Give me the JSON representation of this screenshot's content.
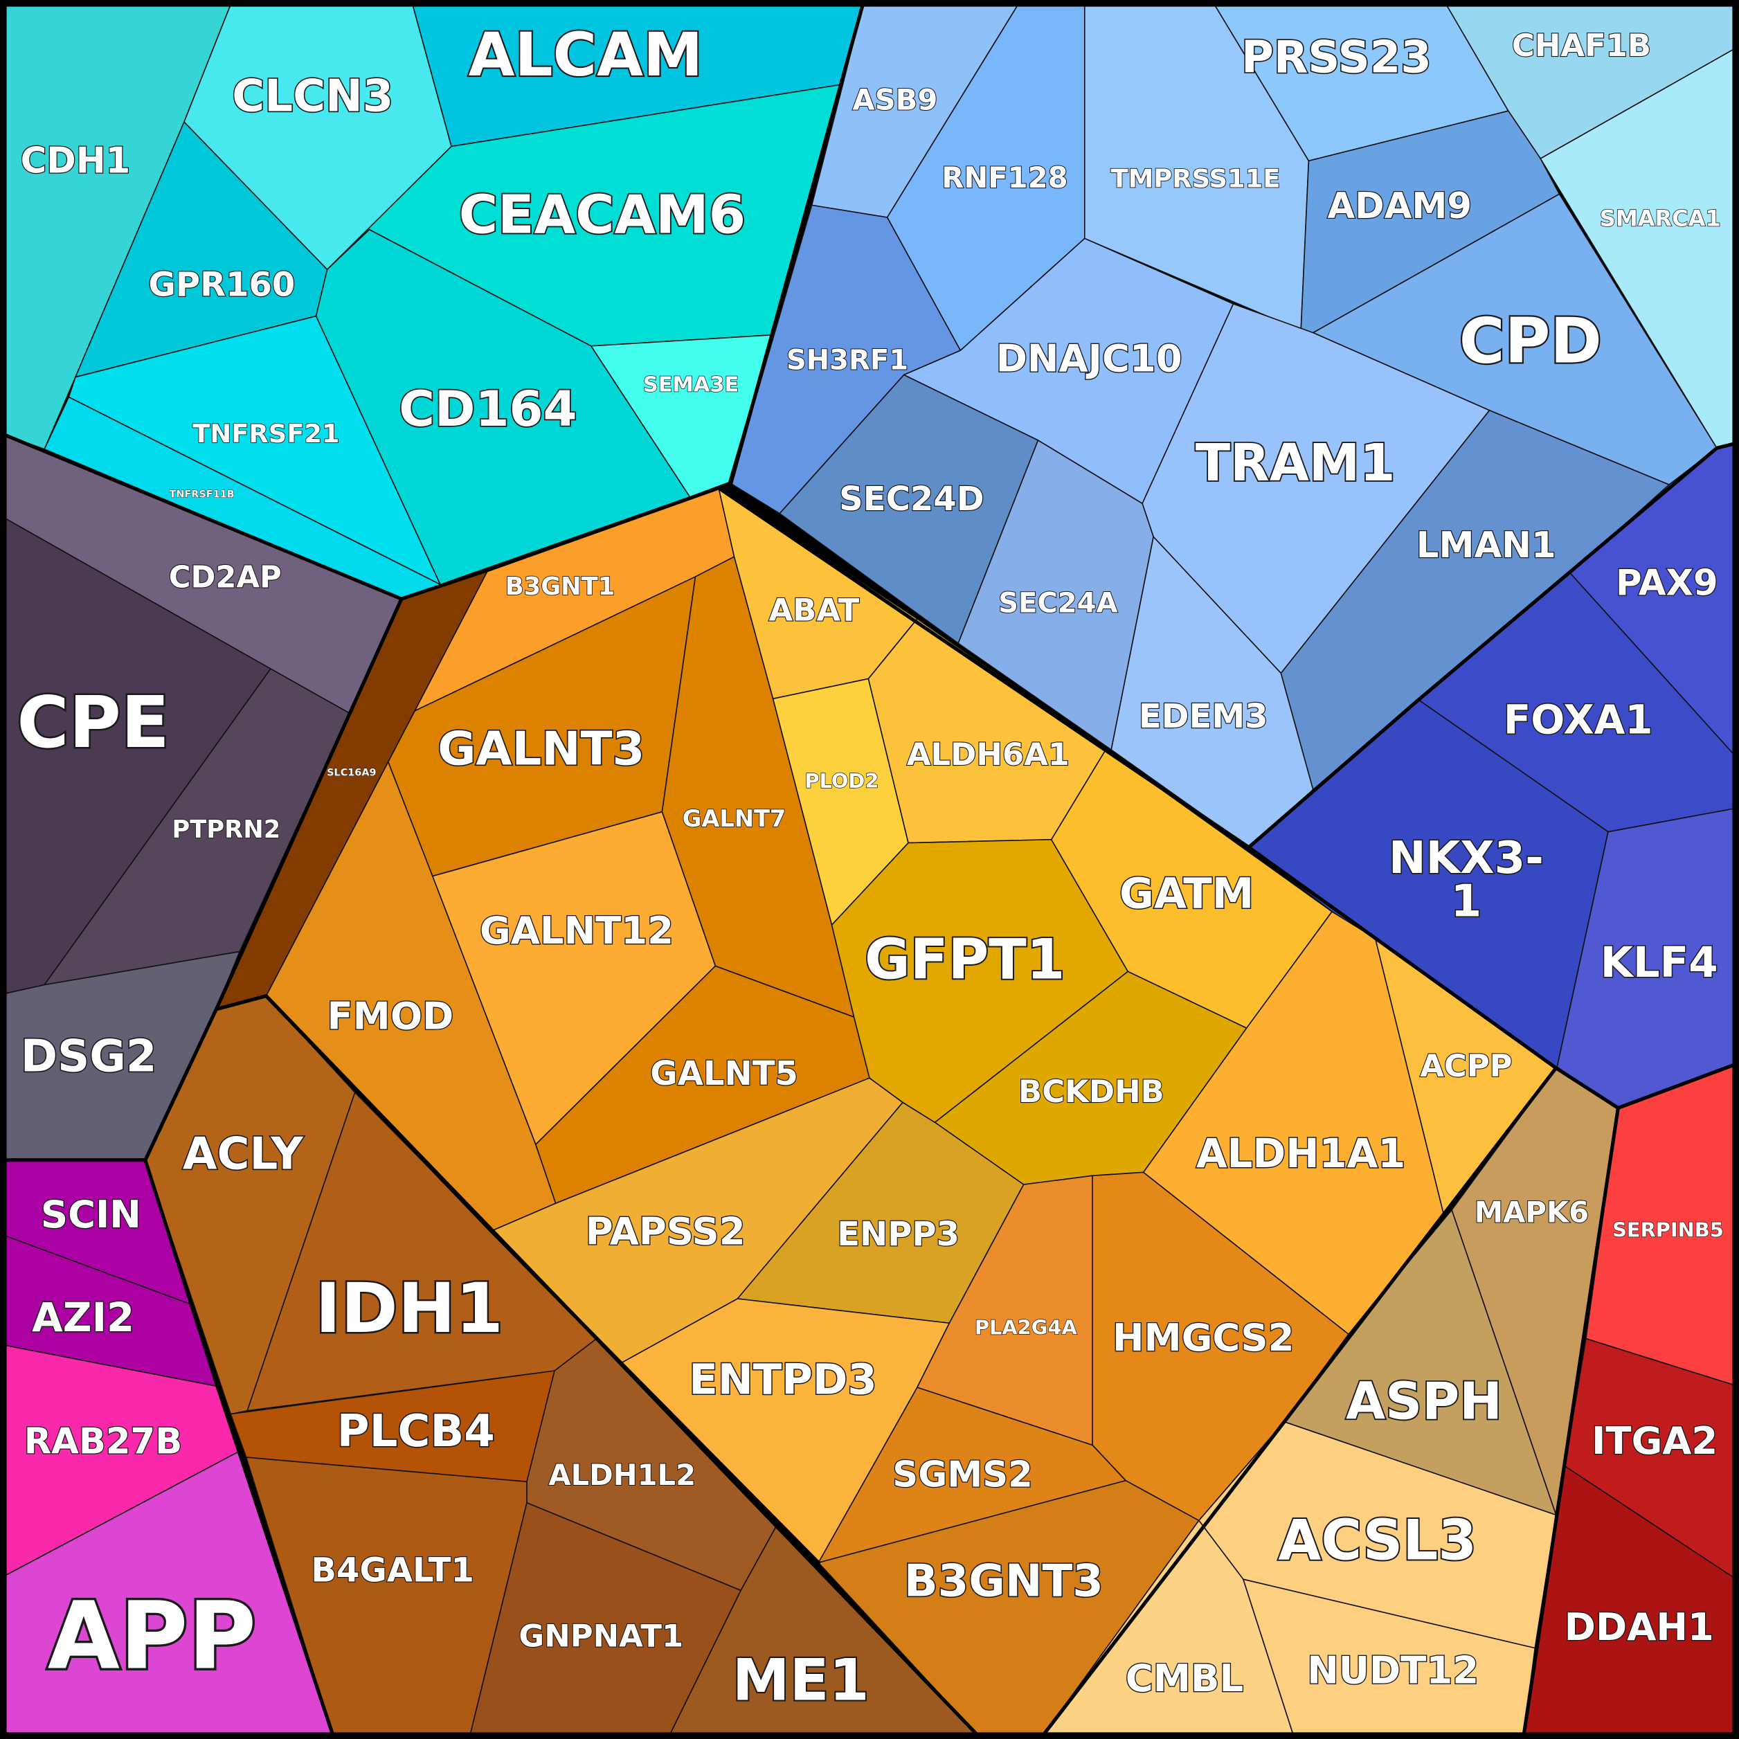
{
  "treemap": {
    "groups": [
      {
        "name": "teal",
        "color": "#00CED1",
        "cells": [
          {
            "label": "CDH1",
            "color": "#36D4D4"
          },
          {
            "label": "CLCN3",
            "color": "#48E9EE"
          },
          {
            "label": "ALCAM",
            "color": "#00C4E0"
          },
          {
            "label": "CEACAM6",
            "color": "#00DED6"
          },
          {
            "label": "GPR160",
            "color": "#00C8D8"
          },
          {
            "label": "TNFRSF21",
            "color": "#00DFEE"
          },
          {
            "label": "TNFRSF11B",
            "color": "#00DAEC"
          },
          {
            "label": "CD164",
            "color": "#00D7D6"
          },
          {
            "label": "SEMA3E",
            "color": "#44FFEE"
          }
        ]
      },
      {
        "name": "light-blue",
        "color": "#87BBF5",
        "cells": [
          {
            "label": "ASB9",
            "color": "#8EC0FA"
          },
          {
            "label": "RNF128",
            "color": "#7AB6FA"
          },
          {
            "label": "TMPRSS11E",
            "color": "#96C8FC"
          },
          {
            "label": "PRSS23",
            "color": "#8DC8FC"
          },
          {
            "label": "CHAF1B",
            "color": "#97D8F0"
          },
          {
            "label": "SMARCA1",
            "color": "#A8EAFA"
          },
          {
            "label": "ADAM9",
            "color": "#68A2E2"
          },
          {
            "label": "CPD",
            "color": "#78B0F0"
          },
          {
            "label": "SH3RF1",
            "color": "#6496E4"
          },
          {
            "label": "DNAJC10",
            "color": "#90BEFC"
          },
          {
            "label": "TRAM1",
            "color": "#98C2FC"
          },
          {
            "label": "SEC24D",
            "color": "#5F8DC8"
          },
          {
            "label": "SEC24A",
            "color": "#86AEE8"
          },
          {
            "label": "EDEM3",
            "color": "#9AC4FA"
          },
          {
            "label": "LMAN1",
            "color": "#6492D0"
          }
        ]
      },
      {
        "name": "dark-purple",
        "color": "#4E3B55",
        "cells": [
          {
            "label": "CD2AP",
            "color": "#70627E"
          },
          {
            "label": "CPE",
            "color": "#4B3A52"
          },
          {
            "label": "PTPRN2",
            "color": "#56465C"
          },
          {
            "label": "DSG2",
            "color": "#646074"
          }
        ]
      },
      {
        "name": "orange",
        "color": "#E8931E",
        "cells": [
          {
            "label": "SLC16A9",
            "color": "#843B00"
          },
          {
            "label": "B3GNT1",
            "color": "#FC9F2A"
          },
          {
            "label": "GALNT3",
            "color": "#DC8200"
          },
          {
            "label": "GALNT7",
            "color": "#DC8200"
          },
          {
            "label": "GALNT12",
            "color": "#FCAC32"
          },
          {
            "label": "GALNT5",
            "color": "#DC8200"
          },
          {
            "label": "FMOD",
            "color": "#E68F18"
          },
          {
            "label": "PAPSS2",
            "color": "#F0AF34"
          },
          {
            "label": "ENPP3",
            "color": "#DAA225"
          },
          {
            "label": "ENTPD3",
            "color": "#FCB33E"
          },
          {
            "label": "PLA2G4A",
            "color": "#EC8D2D"
          },
          {
            "label": "HMGCS2",
            "color": "#E5881A"
          },
          {
            "label": "SGMS2",
            "color": "#DD8318"
          },
          {
            "label": "B3GNT3",
            "color": "#D47E18"
          }
        ]
      },
      {
        "name": "yellow",
        "color": "#F6BE2C",
        "cells": [
          {
            "label": "ABAT",
            "color": "#FCC23C"
          },
          {
            "label": "PLOD2",
            "color": "#FDD03E"
          },
          {
            "label": "ALDH6A1",
            "color": "#FCC23C"
          },
          {
            "label": "GFPT1",
            "color": "#E2A800"
          },
          {
            "label": "GATM",
            "color": "#FCBE2C"
          },
          {
            "label": "BCKDHB",
            "color": "#DEA800"
          },
          {
            "label": "ALDH1A1",
            "color": "#FCAF30"
          },
          {
            "label": "ACPP",
            "color": "#FCC03E"
          }
        ]
      },
      {
        "name": "brown",
        "color": "#A85A1A",
        "cells": [
          {
            "label": "ACLY",
            "color": "#B36418"
          },
          {
            "label": "IDH1",
            "color": "#B05E18"
          },
          {
            "label": "PLCB4",
            "color": "#B45206"
          },
          {
            "label": "ALDH1L2",
            "color": "#A05A24"
          },
          {
            "label": "B4GALT1",
            "color": "#AC5A14"
          },
          {
            "label": "GNPNAT1",
            "color": "#9A501A"
          },
          {
            "label": "ME1",
            "color": "#9C5A20"
          }
        ]
      },
      {
        "name": "blue",
        "color": "#3C4ACA",
        "cells": [
          {
            "label": "PAX9",
            "color": "#4652D2"
          },
          {
            "label": "FOXA1",
            "color": "#3C4CC8"
          },
          {
            "label": "NKX3-1",
            "color": "#3648C2"
          },
          {
            "label": "KLF4",
            "color": "#5058D2"
          }
        ]
      },
      {
        "name": "magenta",
        "color": "#B000A8",
        "cells": [
          {
            "label": "SCIN",
            "color": "#AA00A4"
          },
          {
            "label": "AZI2",
            "color": "#AC00A2"
          },
          {
            "label": "RAB27B",
            "color": "#FA28AA"
          },
          {
            "label": "APP",
            "color": "#DC46D2"
          }
        ]
      },
      {
        "name": "tan",
        "color": "#C8A060",
        "cells": [
          {
            "label": "MAPK6",
            "color": "#C89C5C"
          },
          {
            "label": "ASPH",
            "color": "#C4A060"
          },
          {
            "label": "ACSL3",
            "color": "#FCD080"
          },
          {
            "label": "CMBL",
            "color": "#FCD384"
          },
          {
            "label": "NUDT12",
            "color": "#FCD080"
          }
        ]
      },
      {
        "name": "red",
        "color": "#C81E1E",
        "cells": [
          {
            "label": "SERPINB5",
            "color": "#FC4040"
          },
          {
            "label": "ITGA2",
            "color": "#C01C1E"
          },
          {
            "label": "DDAH1",
            "color": "#AC1414"
          }
        ]
      }
    ]
  }
}
